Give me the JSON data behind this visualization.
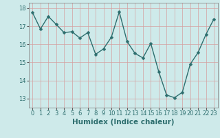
{
  "x": [
    0,
    1,
    2,
    3,
    4,
    5,
    6,
    7,
    8,
    9,
    10,
    11,
    12,
    13,
    14,
    15,
    16,
    17,
    18,
    19,
    20,
    21,
    22,
    23
  ],
  "y": [
    17.75,
    16.85,
    17.55,
    17.1,
    16.65,
    16.7,
    16.35,
    16.65,
    15.45,
    15.75,
    16.4,
    17.8,
    16.15,
    15.5,
    15.25,
    16.05,
    14.5,
    13.2,
    13.05,
    13.35,
    14.9,
    15.55,
    16.55,
    17.4
  ],
  "line_color": "#2d6e6e",
  "marker": "D",
  "marker_size": 2.5,
  "bg_color": "#ceeaea",
  "grid_color": "#b8d4d4",
  "xlabel": "Humidex (Indice chaleur)",
  "ylim": [
    12.5,
    18.3
  ],
  "xlim": [
    -0.5,
    23.5
  ],
  "yticks": [
    13,
    14,
    15,
    16,
    17,
    18
  ],
  "xticks": [
    0,
    1,
    2,
    3,
    4,
    5,
    6,
    7,
    8,
    9,
    10,
    11,
    12,
    13,
    14,
    15,
    16,
    17,
    18,
    19,
    20,
    21,
    22,
    23
  ],
  "tick_fontsize": 6,
  "xlabel_fontsize": 7.5,
  "line_width": 1.0
}
